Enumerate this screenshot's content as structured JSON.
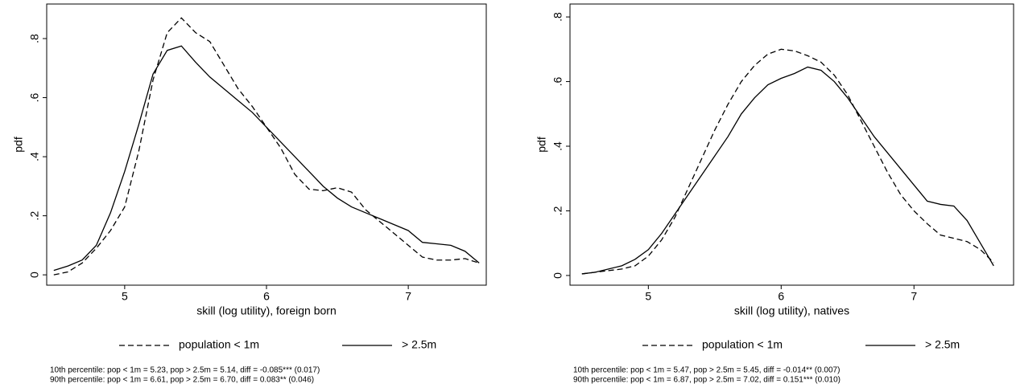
{
  "chart_data": [
    {
      "type": "line",
      "ylabel": "pdf",
      "xlabel": "skill (log utility), foreign born",
      "x": [
        4.5,
        4.6,
        4.7,
        4.8,
        4.9,
        5.0,
        5.1,
        5.2,
        5.3,
        5.4,
        5.5,
        5.6,
        5.7,
        5.8,
        5.9,
        6.0,
        6.1,
        6.2,
        6.3,
        6.4,
        6.5,
        6.6,
        6.7,
        6.8,
        6.9,
        7.0,
        7.1,
        7.2,
        7.3,
        7.4,
        7.5
      ],
      "series": [
        {
          "name": "population < 1m",
          "color": "#000000",
          "dash": "dashed",
          "values": [
            0.0,
            0.01,
            0.04,
            0.09,
            0.15,
            0.23,
            0.42,
            0.66,
            0.82,
            0.87,
            0.82,
            0.79,
            0.71,
            0.63,
            0.57,
            0.5,
            0.43,
            0.34,
            0.29,
            0.285,
            0.295,
            0.28,
            0.22,
            0.18,
            0.14,
            0.1,
            0.06,
            0.05,
            0.05,
            0.055,
            0.04
          ]
        },
        {
          "name": "> 2.5m",
          "color": "#000000",
          "dash": "solid",
          "values": [
            0.015,
            0.03,
            0.05,
            0.1,
            0.21,
            0.35,
            0.51,
            0.68,
            0.76,
            0.775,
            0.72,
            0.67,
            0.63,
            0.59,
            0.55,
            0.5,
            0.45,
            0.4,
            0.35,
            0.3,
            0.26,
            0.23,
            0.21,
            0.19,
            0.17,
            0.15,
            0.11,
            0.105,
            0.1,
            0.08,
            0.04
          ]
        }
      ],
      "xlim": [
        4.45,
        7.55
      ],
      "xticks": [
        5,
        6,
        7
      ],
      "ylim": [
        -0.035,
        0.917
      ],
      "yticks": [
        0,
        {
          "value": 0.2,
          "label": ".2"
        },
        {
          "value": 0.4,
          "label": ".4"
        },
        {
          "value": 0.6,
          "label": ".6"
        },
        {
          "value": 0.8,
          "label": ".8"
        }
      ],
      "grid": false,
      "notes": [
        "10th percentile: pop < 1m = 5.23, pop > 2.5m = 5.14, diff = -0.085*** (0.017)",
        "90th percentile: pop < 1m = 6.61, pop > 2.5m = 6.70, diff = 0.083** (0.046)"
      ]
    },
    {
      "type": "line",
      "ylabel": "pdf",
      "xlabel": "skill (log utility), natives",
      "x": [
        4.5,
        4.6,
        4.7,
        4.8,
        4.9,
        5.0,
        5.1,
        5.2,
        5.3,
        5.4,
        5.5,
        5.6,
        5.7,
        5.8,
        5.9,
        6.0,
        6.1,
        6.2,
        6.3,
        6.4,
        6.5,
        6.6,
        6.7,
        6.8,
        6.9,
        7.0,
        7.1,
        7.2,
        7.3,
        7.4,
        7.5,
        7.6
      ],
      "series": [
        {
          "name": "population < 1m",
          "color": "#000000",
          "dash": "dashed",
          "values": [
            0.005,
            0.01,
            0.015,
            0.02,
            0.03,
            0.06,
            0.11,
            0.18,
            0.27,
            0.36,
            0.45,
            0.53,
            0.6,
            0.65,
            0.685,
            0.7,
            0.695,
            0.68,
            0.66,
            0.62,
            0.56,
            0.48,
            0.4,
            0.32,
            0.25,
            0.2,
            0.16,
            0.125,
            0.115,
            0.105,
            0.08,
            0.04
          ]
        },
        {
          "name": "> 2.5m",
          "color": "#000000",
          "dash": "solid",
          "values": [
            0.005,
            0.01,
            0.02,
            0.03,
            0.05,
            0.08,
            0.13,
            0.19,
            0.25,
            0.31,
            0.37,
            0.43,
            0.5,
            0.55,
            0.59,
            0.61,
            0.625,
            0.645,
            0.635,
            0.6,
            0.55,
            0.49,
            0.43,
            0.38,
            0.33,
            0.28,
            0.23,
            0.22,
            0.215,
            0.17,
            0.1,
            0.03
          ]
        }
      ],
      "xlim": [
        4.41,
        7.75
      ],
      "xticks": [
        5,
        6,
        7
      ],
      "ylim": [
        -0.03,
        0.84
      ],
      "yticks": [
        0,
        {
          "value": 0.2,
          "label": ".2"
        },
        {
          "value": 0.4,
          "label": ".4"
        },
        {
          "value": 0.6,
          "label": ".6"
        },
        {
          "value": 0.8,
          "label": ".8"
        }
      ],
      "grid": false,
      "notes": [
        "10th percentile: pop < 1m = 5.47, pop > 2.5m = 5.45, diff = -0.014** (0.007)",
        "90th percentile: pop < 1m = 6.87, pop > 2.5m = 7.02, diff = 0.151*** (0.010)"
      ]
    }
  ]
}
